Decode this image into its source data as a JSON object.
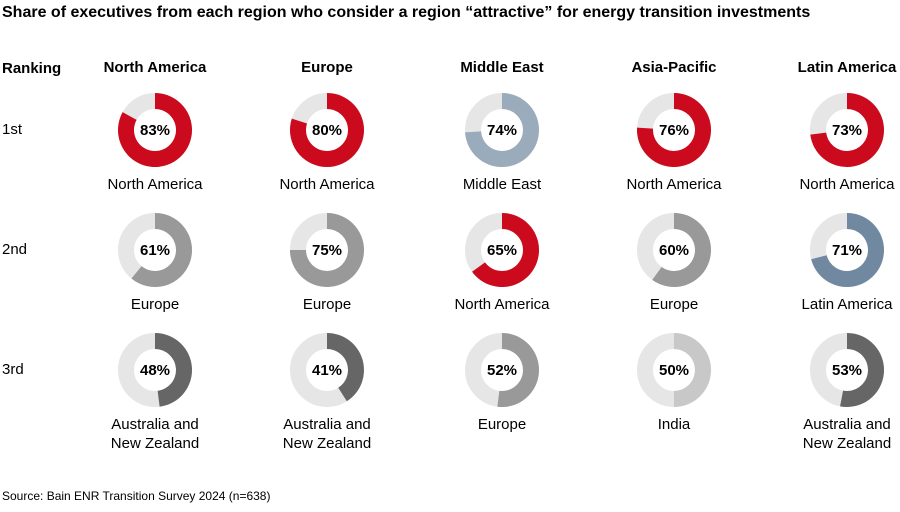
{
  "chart_data": {
    "type": "pie",
    "subtype": "donut-grid",
    "title": "Share of executives from each region who consider a region “attractive” for energy transition investments",
    "row_header": "Ranking",
    "rows": [
      "1st",
      "2nd",
      "3rd"
    ],
    "columns": [
      "North America",
      "Europe",
      "Middle East",
      "Asia-Pacific",
      "Latin America"
    ],
    "cells": [
      [
        {
          "value": 83,
          "label": "83%",
          "region": "North America",
          "color": "#cc0a1e"
        },
        {
          "value": 80,
          "label": "80%",
          "region": "North America",
          "color": "#cc0a1e"
        },
        {
          "value": 74,
          "label": "74%",
          "region": "Middle East",
          "color": "#9aabbb"
        },
        {
          "value": 76,
          "label": "76%",
          "region": "North America",
          "color": "#cc0a1e"
        },
        {
          "value": 73,
          "label": "73%",
          "region": "North America",
          "color": "#cc0a1e"
        }
      ],
      [
        {
          "value": 61,
          "label": "61%",
          "region": "Europe",
          "color": "#999999"
        },
        {
          "value": 75,
          "label": "75%",
          "region": "Europe",
          "color": "#999999"
        },
        {
          "value": 65,
          "label": "65%",
          "region": "North America",
          "color": "#cc0a1e"
        },
        {
          "value": 60,
          "label": "60%",
          "region": "Europe",
          "color": "#999999"
        },
        {
          "value": 71,
          "label": "71%",
          "region": "Latin America",
          "color": "#7189a0"
        }
      ],
      [
        {
          "value": 48,
          "label": "48%",
          "region": "Australia and New Zealand",
          "color": "#666666"
        },
        {
          "value": 41,
          "label": "41%",
          "region": "Australia and New Zealand",
          "color": "#666666"
        },
        {
          "value": 52,
          "label": "52%",
          "region": "Europe",
          "color": "#999999"
        },
        {
          "value": 50,
          "label": "50%",
          "region": "India",
          "color": "#c8c8c8"
        },
        {
          "value": 53,
          "label": "53%",
          "region": "Australia and New Zealand",
          "color": "#666666"
        }
      ]
    ],
    "track_color": "#e6e6e6",
    "source": "Source: Bain ENR Transition Survey 2024 (n=638)"
  }
}
